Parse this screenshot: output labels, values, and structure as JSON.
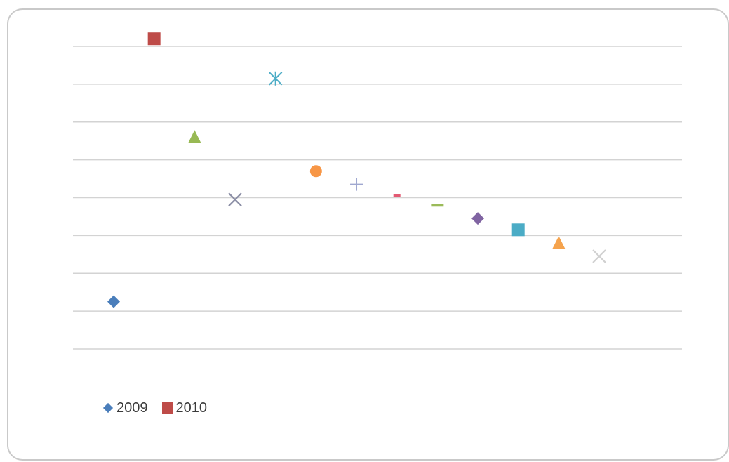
{
  "chart_data": {
    "type": "scatter",
    "title": "",
    "xlabel": "",
    "ylabel": "",
    "grid": true,
    "legend_position": "bottom-left",
    "xlim": [
      0,
      15
    ],
    "ylim": [
      0,
      8
    ],
    "points": [
      {
        "x": 1,
        "y": 1.25,
        "marker": "diamond",
        "color": "#4a7ebb"
      },
      {
        "x": 2,
        "y": 8.2,
        "marker": "square",
        "color": "#be4b48"
      },
      {
        "x": 3,
        "y": 5.6,
        "marker": "triangle",
        "color": "#98b954"
      },
      {
        "x": 4,
        "y": 3.95,
        "marker": "x",
        "color": "#8c8fa6"
      },
      {
        "x": 5,
        "y": 7.15,
        "marker": "star",
        "color": "#4bacc6"
      },
      {
        "x": 6,
        "y": 4.7,
        "marker": "circle",
        "color": "#f79646"
      },
      {
        "x": 7,
        "y": 4.35,
        "marker": "plus",
        "color": "#a0a8d0"
      },
      {
        "x": 8,
        "y": 4.05,
        "marker": "short-dash",
        "color": "#e35a73"
      },
      {
        "x": 9,
        "y": 3.8,
        "marker": "dash",
        "color": "#9bbb59"
      },
      {
        "x": 10,
        "y": 3.45,
        "marker": "diamond",
        "color": "#8064a2"
      },
      {
        "x": 11,
        "y": 3.15,
        "marker": "square",
        "color": "#4bacc6"
      },
      {
        "x": 12,
        "y": 2.8,
        "marker": "triangle",
        "color": "#f5a34d"
      },
      {
        "x": 13,
        "y": 2.45,
        "marker": "x",
        "color": "#d0d0d0"
      }
    ],
    "legend": [
      {
        "name": "2009",
        "marker": "diamond",
        "color": "#4a7ebb"
      },
      {
        "name": "2010",
        "marker": "square",
        "color": "#be4b48"
      }
    ]
  }
}
